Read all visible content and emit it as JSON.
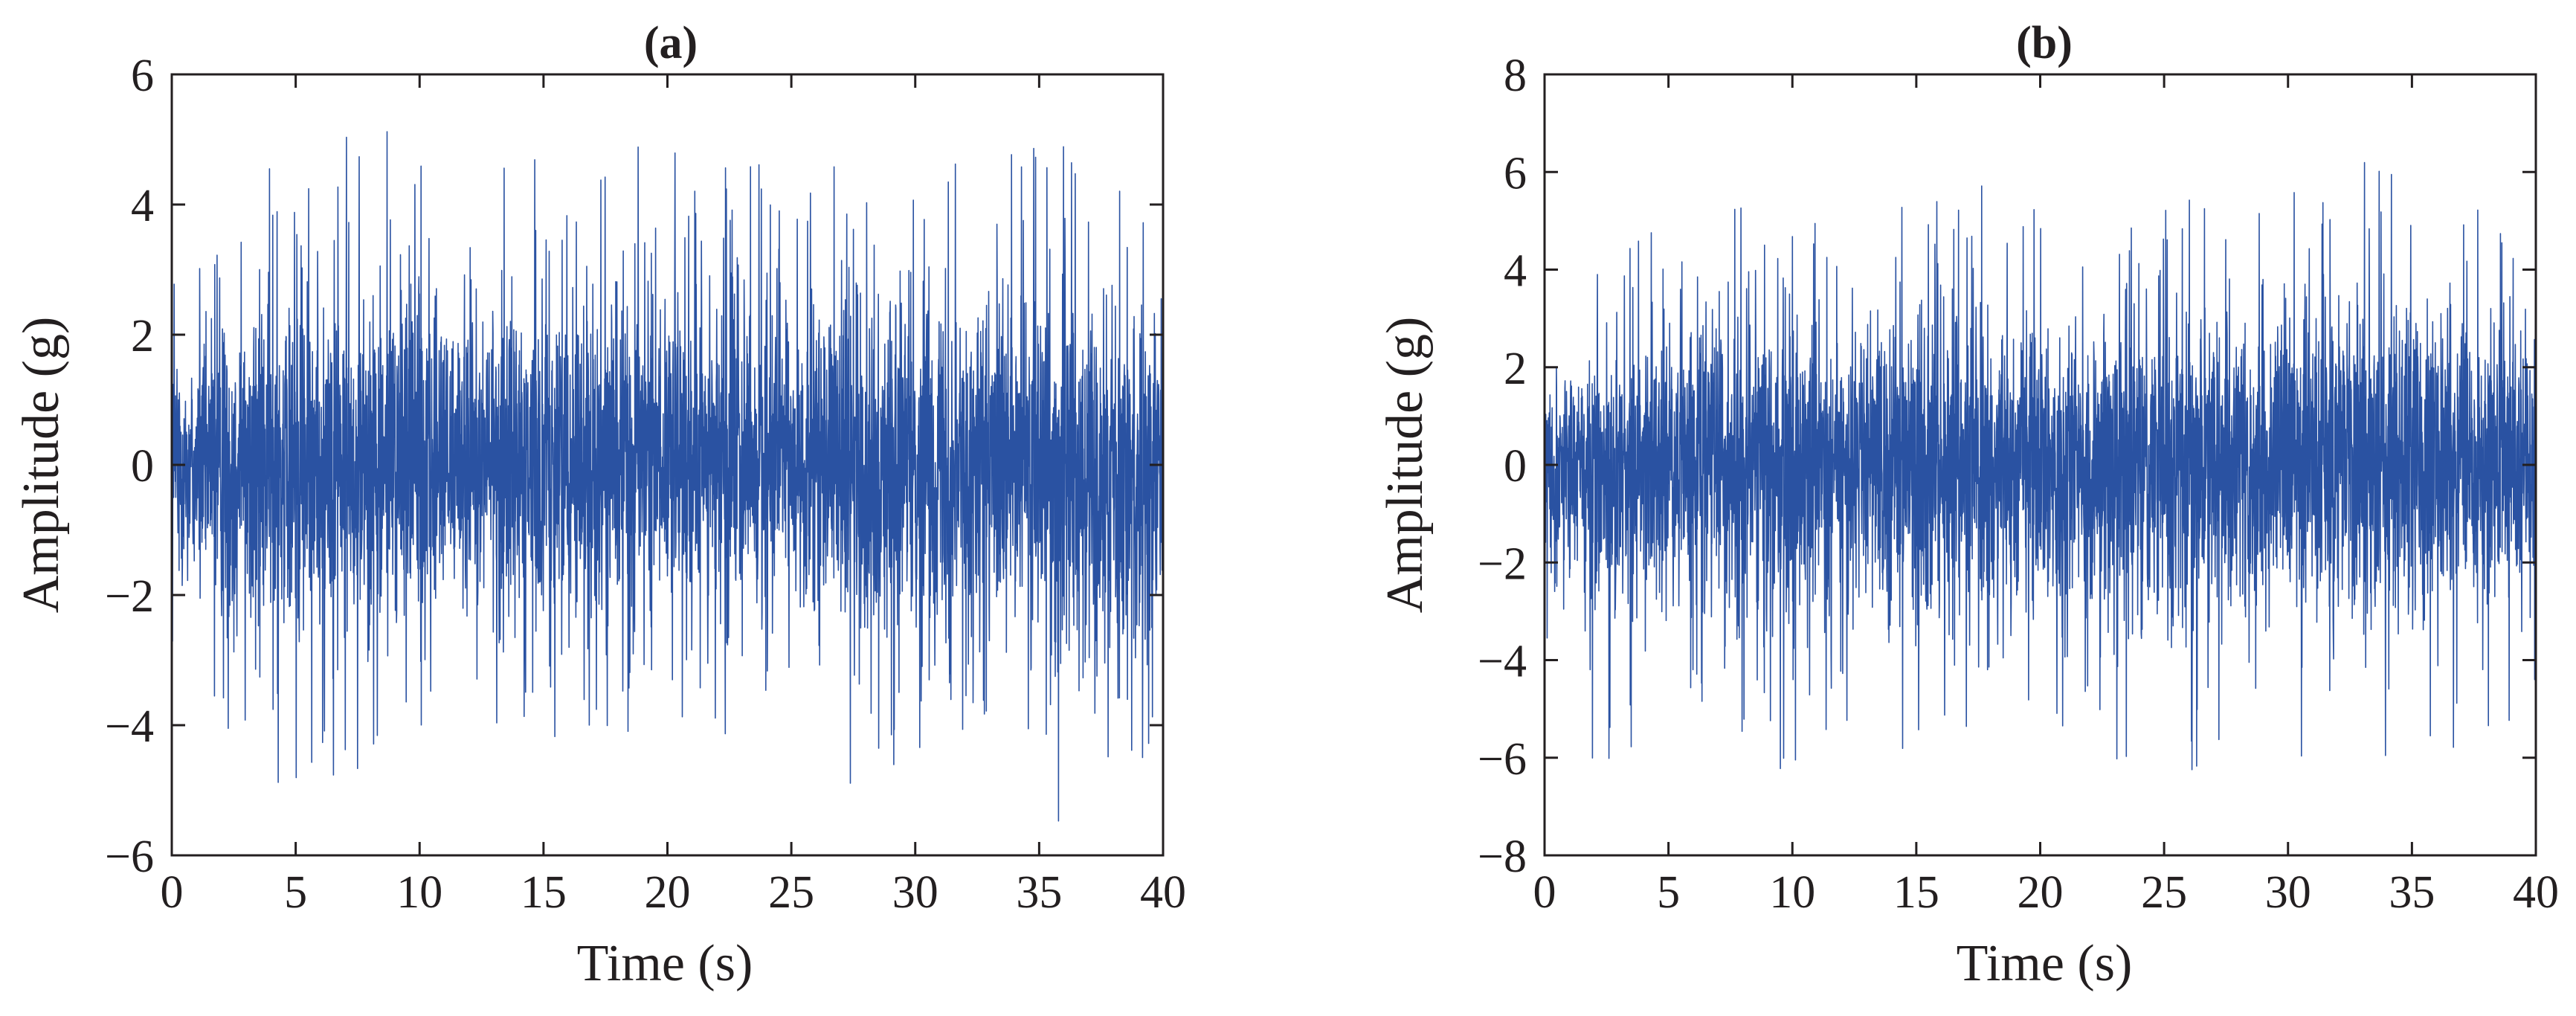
{
  "figure": {
    "signal_color": "#2a52a2",
    "text_color": "#231f20",
    "background": "#ffffff"
  },
  "chart_data": [
    {
      "type": "line",
      "title": "(a)",
      "xlabel": "Time (s)",
      "ylabel": "Amplitude (g)",
      "xlim": [
        0,
        40
      ],
      "ylim": [
        -6,
        6
      ],
      "xticks": [
        0,
        5,
        10,
        15,
        20,
        25,
        30,
        35,
        40
      ],
      "yticks": [
        6,
        4,
        2,
        0,
        -2,
        -4,
        -6
      ],
      "xtick_labels": [
        "0",
        "5",
        "10",
        "15",
        "20",
        "25",
        "30",
        "35",
        "40"
      ],
      "ytick_labels": [
        "6",
        "4",
        "2",
        "0",
        "−2",
        "−4",
        "−6"
      ],
      "grid": false,
      "series": [
        {
          "style": "dense random vibration record",
          "duration_s": 40,
          "envelope": {
            "t": [
              0,
              2.5,
              5,
              7.5,
              10,
              12.5,
              15,
              17.5,
              20,
              22.5,
              25,
              27.5,
              30,
              32.5,
              35,
              37.5,
              40
            ],
            "y_max": [
              3.0,
              4.2,
              4.9,
              5.3,
              5.1,
              4.6,
              4.9,
              5.0,
              4.8,
              4.9,
              4.6,
              4.9,
              4.8,
              4.6,
              5.2,
              4.5,
              3.8
            ],
            "y_min": [
              -3.0,
              -4.6,
              -5.3,
              -4.9,
              -4.3,
              -3.9,
              -4.7,
              -4.4,
              -4.0,
              -4.2,
              -4.1,
              -5.1,
              -4.5,
              -4.7,
              -5.5,
              -5.9,
              -5.2
            ]
          }
        }
      ]
    },
    {
      "type": "line",
      "title": "(b)",
      "xlabel": "Time (s)",
      "ylabel": "Amplitude (g)",
      "xlim": [
        0,
        40
      ],
      "ylim": [
        -8,
        8
      ],
      "xticks": [
        0,
        5,
        10,
        15,
        20,
        25,
        30,
        35,
        40
      ],
      "yticks": [
        8,
        6,
        4,
        2,
        0,
        -2,
        -4,
        -6,
        -8
      ],
      "xtick_labels": [
        "0",
        "5",
        "10",
        "15",
        "20",
        "25",
        "30",
        "35",
        "40"
      ],
      "ytick_labels": [
        "8",
        "6",
        "4",
        "2",
        "0",
        "−2",
        "−4",
        "−6",
        "−8"
      ],
      "grid": false,
      "series": [
        {
          "style": "dense random vibration record",
          "duration_s": 40,
          "envelope": {
            "t": [
              0,
              2.5,
              5,
              7.5,
              10,
              12.5,
              15,
              17.5,
              20,
              22.5,
              25,
              27.5,
              30,
              32.5,
              35,
              37.5,
              40
            ],
            "y_max": [
              3.5,
              4.4,
              5.0,
              5.6,
              5.3,
              5.0,
              5.6,
              5.9,
              5.2,
              5.0,
              5.6,
              5.4,
              5.9,
              6.7,
              5.6,
              5.5,
              5.2
            ],
            "y_min": [
              -4.0,
              -6.8,
              -5.8,
              -5.5,
              -6.4,
              -5.2,
              -6.0,
              -5.6,
              -5.6,
              -6.0,
              -7.4,
              -5.8,
              -6.0,
              -6.8,
              -6.0,
              -5.8,
              -5.0
            ]
          }
        }
      ]
    }
  ]
}
